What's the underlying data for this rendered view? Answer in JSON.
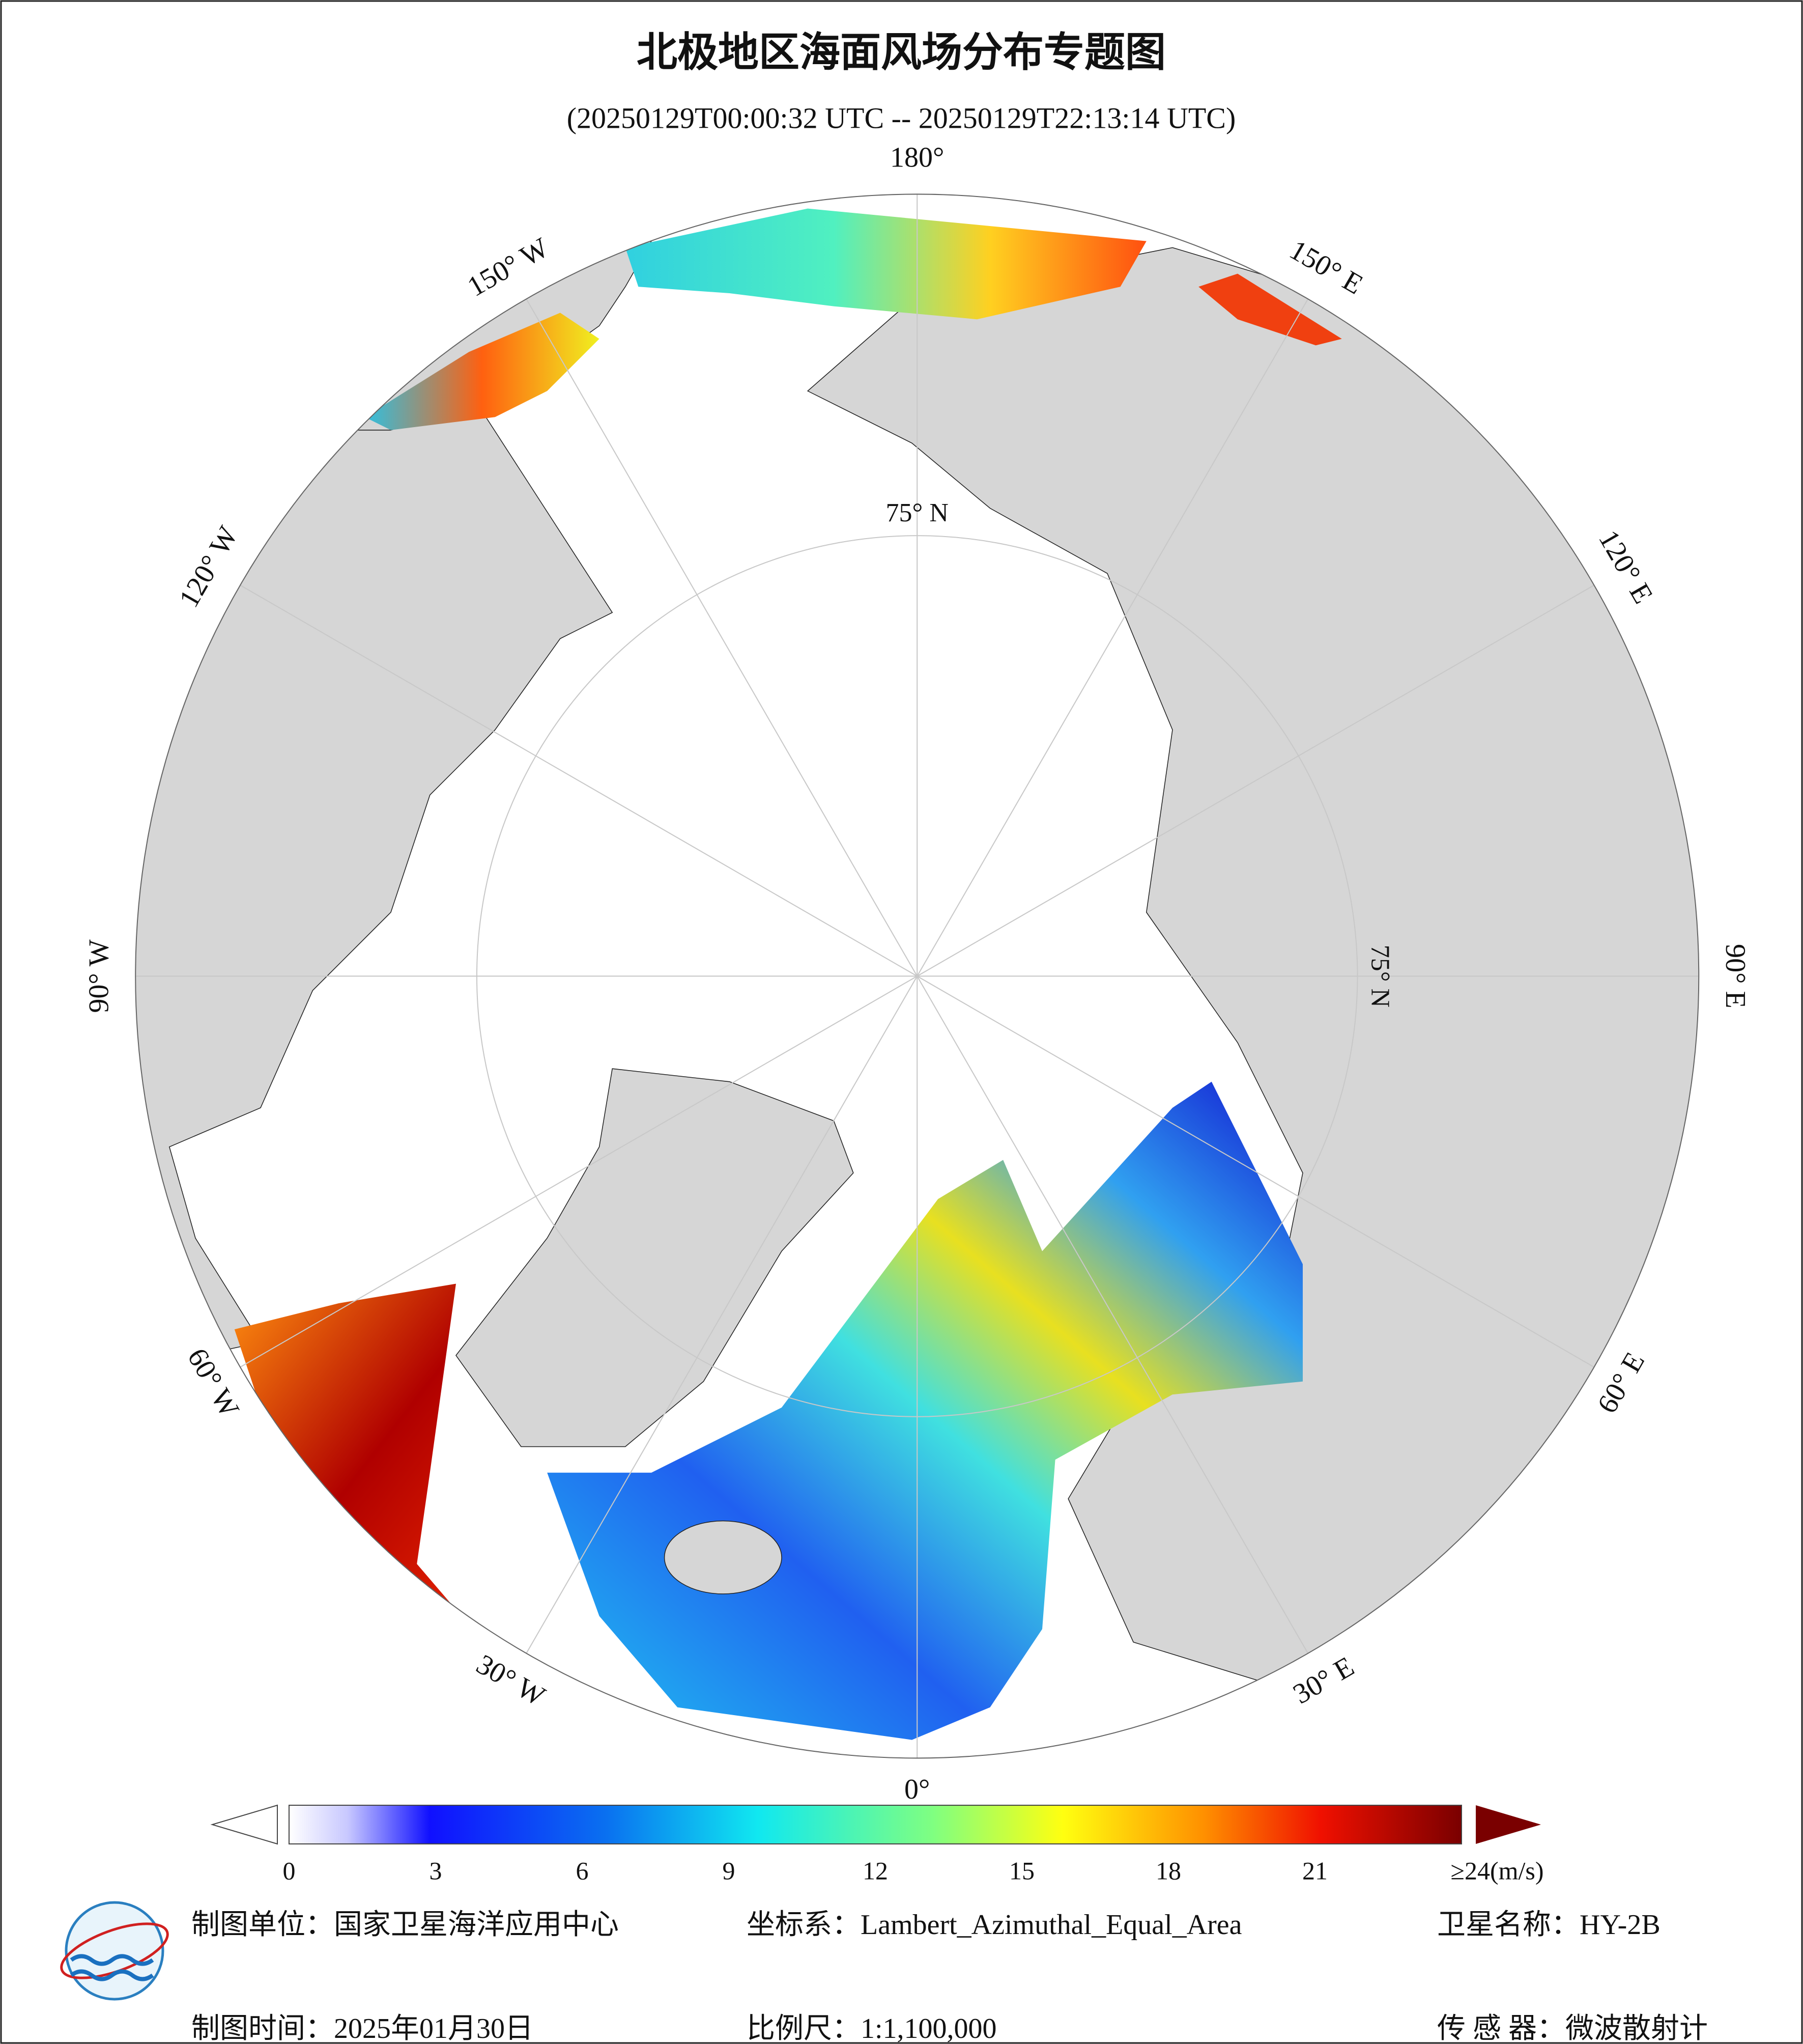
{
  "title": "北极地区海面风场分布专题图",
  "subtitle": "(20250129T00:00:32 UTC -- 20250129T22:13:14 UTC)",
  "map": {
    "longitude_labels": [
      "180°",
      "150° E",
      "120° E",
      "90° E",
      "60° E",
      "30° E",
      "0°",
      "30° W",
      "60° W",
      "90° W",
      "120° W",
      "150° W"
    ],
    "latitude_label": "75° N"
  },
  "colorbar": {
    "range": [
      0,
      24
    ],
    "ticks": [
      0,
      3,
      6,
      9,
      12,
      15,
      18,
      21
    ],
    "max_label": "≥24(m/s)"
  },
  "footer": {
    "rows": [
      [
        "制图单位：国家卫星海洋应用中心",
        "坐标系：Lambert_Azimuthal_Equal_Area",
        "卫星名称：HY-2B"
      ],
      [
        "制图时间：2025年01月30日",
        "比例尺：1:1,100,000",
        "传 感 器：微波散射计"
      ]
    ]
  }
}
